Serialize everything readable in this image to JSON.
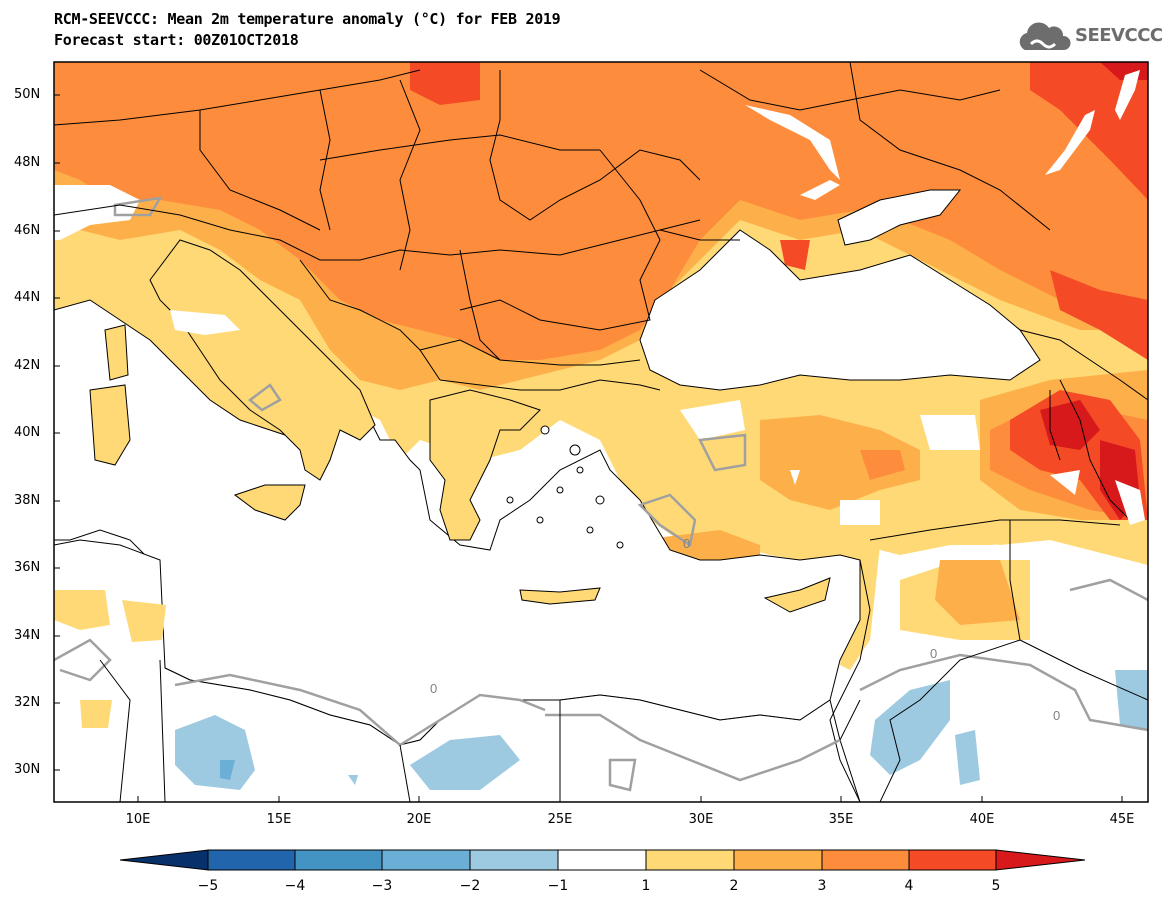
{
  "title_line1": "RCM-SEEVCCC: Mean 2m temperature anomaly (°C) for FEB 2019",
  "title_line2": "Forecast start: 00Z01OCT2018",
  "logo_text": "SEEVCCC",
  "lat_labels": [
    "50N",
    "48N",
    "46N",
    "44N",
    "42N",
    "40N",
    "38N",
    "36N",
    "34N",
    "32N",
    "30N"
  ],
  "lon_labels": [
    "10E",
    "15E",
    "20E",
    "25E",
    "30E",
    "35E",
    "40E",
    "45E"
  ],
  "contour_label": "0",
  "colorbar": {
    "ticks": [
      "−5",
      "−4",
      "−3",
      "−2",
      "−1",
      "1",
      "2",
      "3",
      "4",
      "5"
    ],
    "colors": [
      "#08306b",
      "#2166ac",
      "#4393c3",
      "#6baed6",
      "#9ecae1",
      "#ffffff",
      "#fed976",
      "#fdb04a",
      "#fd8d3c",
      "#f44a26",
      "#d7191c"
    ],
    "land_anomaly_colors": {
      "c1_2": "#fed976",
      "c2_3": "#fdb04a",
      "c3_4": "#fd8d3c",
      "c4_5": "#f44a26",
      "c5": "#d7191c",
      "cn1": "#9ecae1",
      "cn2": "#6baed6"
    }
  }
}
